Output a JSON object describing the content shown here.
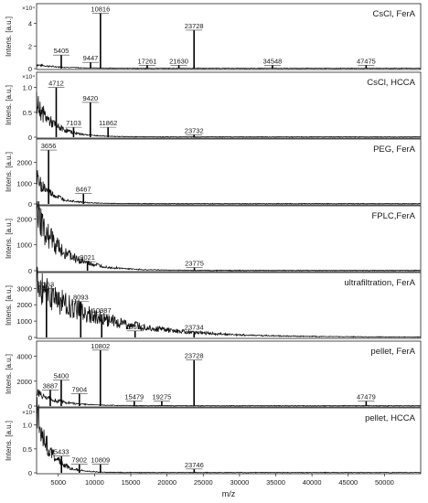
{
  "chart_data": [
    {
      "type": "line",
      "title": "CsCl, FerA",
      "ylabel": "Intens. [a.u.]",
      "yexp": "×10⁴",
      "yticks": [
        "0",
        "2",
        "4"
      ],
      "ylim": [
        0,
        5.5
      ],
      "peaks": [
        {
          "x": 5405,
          "y": 1.2,
          "label": "5405"
        },
        {
          "x": 9447,
          "y": 0.55,
          "label": "9447"
        },
        {
          "x": 10816,
          "y": 4.9,
          "label": "10816"
        },
        {
          "x": 17261,
          "y": 0.3,
          "label": "17261"
        },
        {
          "x": 21630,
          "y": 0.3,
          "label": "21630"
        },
        {
          "x": 23728,
          "y": 3.4,
          "label": "23728"
        },
        {
          "x": 34548,
          "y": 0.3,
          "label": "34548"
        },
        {
          "x": 47475,
          "y": 0.3,
          "label": "47475"
        }
      ]
    },
    {
      "type": "line",
      "title": "CsCl, HCCA",
      "ylabel": "Intens. [a.u.]",
      "yexp": "×10⁴",
      "yticks": [
        "0",
        "0.5",
        "1.0"
      ],
      "ylim": [
        0,
        1.25
      ],
      "peaks": [
        {
          "x": 4712,
          "y": 1.0,
          "label": "4712"
        },
        {
          "x": 7103,
          "y": 0.2,
          "label": "7103"
        },
        {
          "x": 9420,
          "y": 0.7,
          "label": "9420"
        },
        {
          "x": 11862,
          "y": 0.2,
          "label": "11862"
        },
        {
          "x": 23732,
          "y": 0.05,
          "label": "23732"
        }
      ]
    },
    {
      "type": "line",
      "title": "PEG, FerA",
      "ylabel": "Intens. [a.u.]",
      "yticks": [
        "0",
        "1000",
        "2000"
      ],
      "ylim": [
        0,
        3000
      ],
      "peaks": [
        {
          "x": 3656,
          "y": 2600,
          "label": "3656"
        },
        {
          "x": 8467,
          "y": 500,
          "label": "8467"
        }
      ]
    },
    {
      "type": "line",
      "title": "FPLC,FerA",
      "ylabel": "Intens. [a.u.]",
      "yticks": [
        "0",
        "1000",
        "2000"
      ],
      "ylim": [
        0,
        2400
      ],
      "peaks": [
        {
          "x": 9021,
          "y": 350,
          "label": "9021"
        },
        {
          "x": 23775,
          "y": 120,
          "label": "23775"
        }
      ]
    },
    {
      "type": "line",
      "title": "ultrafiltration, FerA",
      "ylabel": "Intens. [a.u.]",
      "yticks": [
        "0",
        "1000",
        "2000",
        "3000"
      ],
      "ylim": [
        0,
        3800
      ],
      "peaks": [
        {
          "x": 3363,
          "y": 3000,
          "label": "3363"
        },
        {
          "x": 8093,
          "y": 2200,
          "label": "8093"
        },
        {
          "x": 10987,
          "y": 1400,
          "label": "10987"
        },
        {
          "x": 15590,
          "y": 400,
          "label": "15590"
        },
        {
          "x": 23734,
          "y": 350,
          "label": "23734"
        }
      ]
    },
    {
      "type": "line",
      "title": "pellet, FerA",
      "ylabel": "Intens. [a.u.]",
      "yticks": [
        "0",
        "2000",
        "4000"
      ],
      "ylim": [
        0,
        5000
      ],
      "peaks": [
        {
          "x": 3887,
          "y": 1300,
          "label": "3887"
        },
        {
          "x": 5400,
          "y": 2100,
          "label": "5400"
        },
        {
          "x": 7904,
          "y": 1000,
          "label": "7904"
        },
        {
          "x": 10802,
          "y": 4500,
          "label": "10802"
        },
        {
          "x": 15479,
          "y": 400,
          "label": "15479"
        },
        {
          "x": 19275,
          "y": 400,
          "label": "19275"
        },
        {
          "x": 23728,
          "y": 3700,
          "label": "23728"
        },
        {
          "x": 47479,
          "y": 400,
          "label": "47479"
        }
      ]
    },
    {
      "type": "line",
      "title": "pellet, HCCA",
      "ylabel": "Intens. [a.u.]",
      "yexp": "×10⁴",
      "yticks": [
        "0",
        "0.5",
        "1.0"
      ],
      "ylim": [
        0,
        1.3
      ],
      "peaks": [
        {
          "x": 5433,
          "y": 0.35,
          "label": "5433"
        },
        {
          "x": 7902,
          "y": 0.18,
          "label": "7902"
        },
        {
          "x": 10809,
          "y": 0.18,
          "label": "10809"
        },
        {
          "x": 23746,
          "y": 0.08,
          "label": "23746"
        }
      ]
    }
  ],
  "xaxis": {
    "label": "m/z",
    "xlim": [
      2000,
      55000
    ],
    "ticks": [
      5000,
      10000,
      15000,
      20000,
      25000,
      30000,
      35000,
      40000,
      45000,
      50000
    ]
  }
}
